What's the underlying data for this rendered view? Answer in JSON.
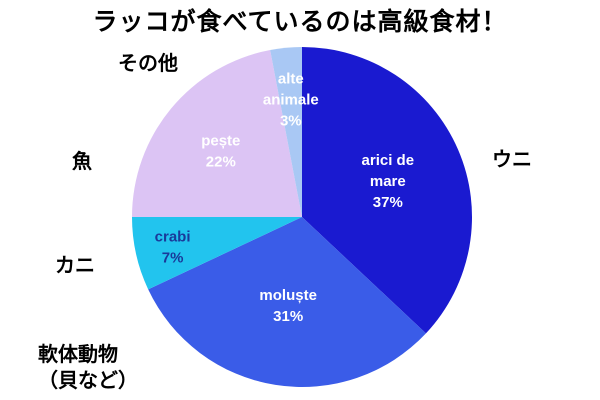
{
  "chart_data": {
    "type": "pie",
    "title": "ラッコが食べているのは高級食材！",
    "slices": [
      {
        "label": "arici de\nmare",
        "value": 37,
        "pct_label": "37%",
        "outer_label": "ウニ",
        "color": "#1a1ad0",
        "label_color": "#ffffff"
      },
      {
        "label": "moluște",
        "value": 31,
        "pct_label": "31%",
        "outer_label": "軟体動物\n（貝など）",
        "color": "#3a5ce8",
        "label_color": "#ffffff"
      },
      {
        "label": "crabi",
        "value": 7,
        "pct_label": "7%",
        "outer_label": "カニ",
        "color": "#22c4ee",
        "label_color": "#1a3a9a"
      },
      {
        "label": "pește",
        "value": 22,
        "pct_label": "22%",
        "outer_label": "魚",
        "color": "#dcc4f4",
        "label_color": "#ffffff"
      },
      {
        "label": "alte\nanimale",
        "value": 3,
        "pct_label": "3%",
        "outer_label": "その他",
        "color": "#a9c8f4",
        "label_color": "#ffffff"
      }
    ]
  }
}
